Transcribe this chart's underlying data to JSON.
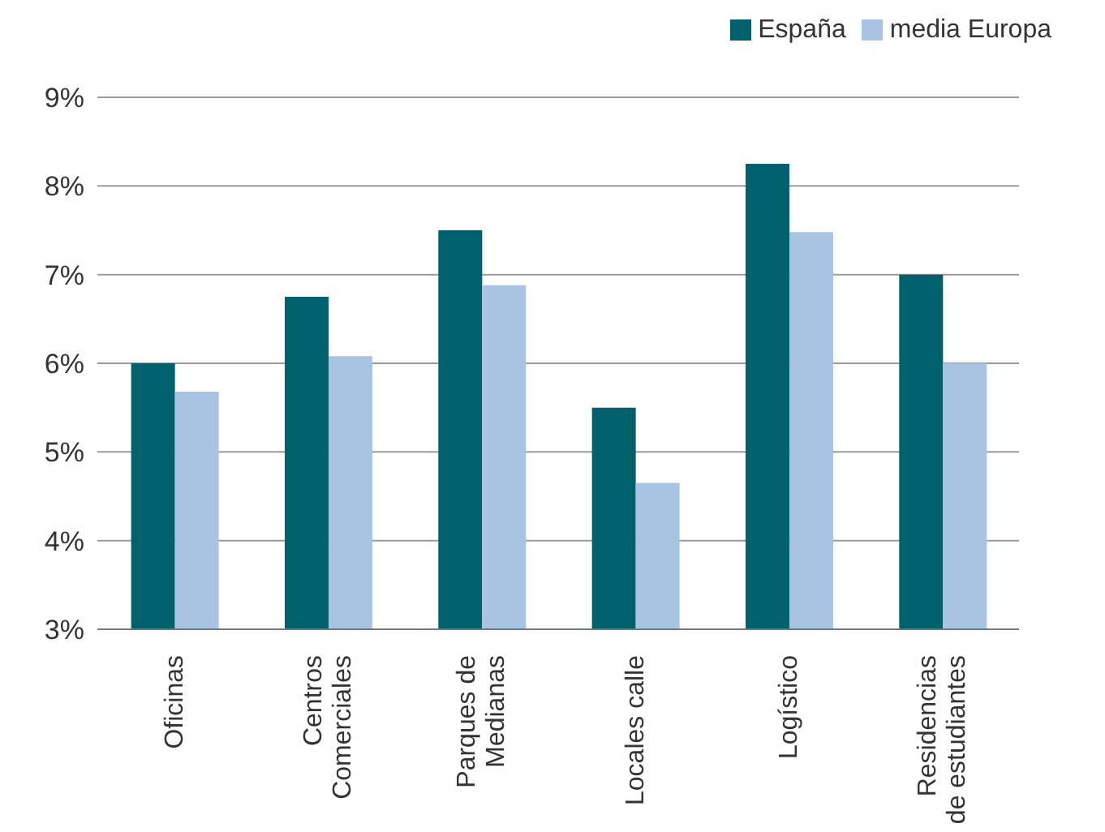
{
  "chart_data": {
    "type": "bar",
    "categories": [
      "Oficinas",
      "Centros\nComerciales",
      "Parques de\nMedianas",
      "Locales calle",
      "Logístico",
      "Residencias\nde estudiantes"
    ],
    "series": [
      {
        "name": "España",
        "color": "#00606b",
        "values": [
          6.0,
          6.75,
          7.5,
          5.5,
          8.25,
          7.0
        ]
      },
      {
        "name": "media Europa",
        "color": "#a9c4e2",
        "values": [
          5.68,
          6.08,
          6.88,
          4.65,
          7.48,
          6.0
        ]
      }
    ],
    "ylim": [
      3,
      9
    ],
    "yticks": [
      {
        "value": 3,
        "label": "3%"
      },
      {
        "value": 4,
        "label": "4%"
      },
      {
        "value": 5,
        "label": "5%"
      },
      {
        "value": 6,
        "label": "6%"
      },
      {
        "value": 7,
        "label": "7%"
      },
      {
        "value": 8,
        "label": "8%"
      },
      {
        "value": 9,
        "label": "9%"
      }
    ],
    "grid": "y",
    "legend": "top right"
  }
}
